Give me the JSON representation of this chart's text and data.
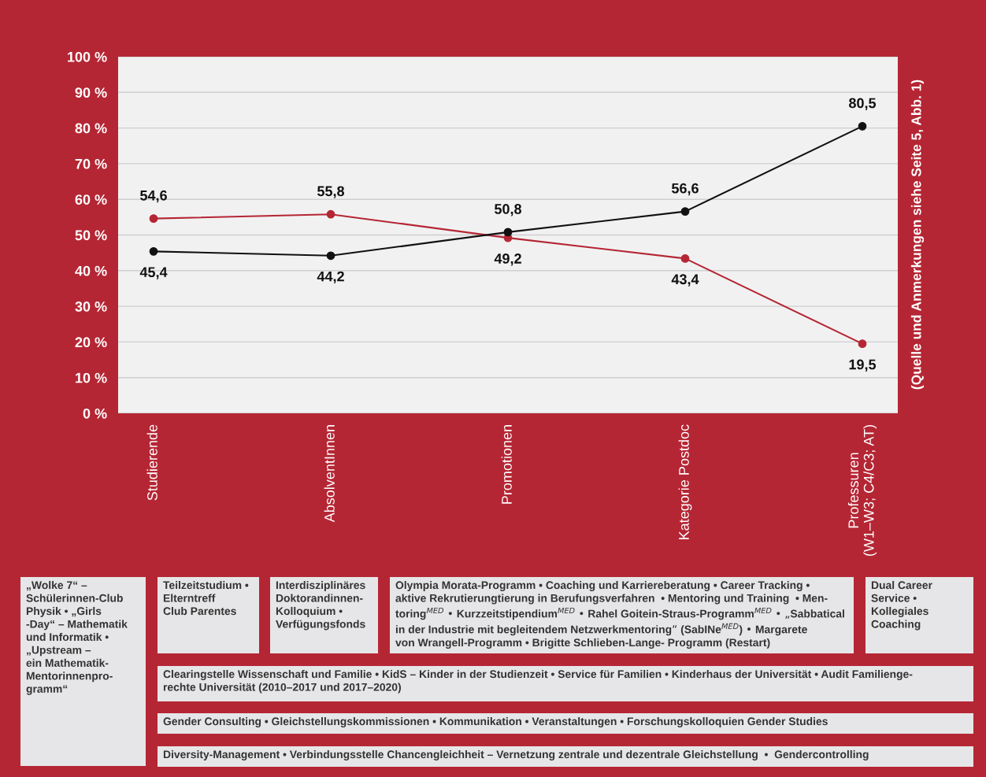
{
  "chart_data": {
    "type": "line",
    "categories": [
      "Studierende",
      "AbsolventInnen",
      "Promotionen",
      "Kategorie Postdoc",
      "Professuren\n(W1–W3; C4/C3; AT)"
    ],
    "series": [
      {
        "color": "#b52634",
        "values": [
          54.6,
          55.8,
          49.2,
          43.4,
          19.5
        ],
        "value_labels": [
          "54,6",
          "55,8",
          "49,2",
          "43,4",
          "19,5"
        ]
      },
      {
        "color": "#111111",
        "values": [
          45.4,
          44.2,
          50.8,
          56.6,
          80.5
        ],
        "value_labels": [
          "45,4",
          "44,2",
          "50,8",
          "56,6",
          "80,5"
        ]
      }
    ],
    "ylim": [
      0,
      100
    ],
    "yticks": [
      {
        "value": 0,
        "label": "0 %"
      },
      {
        "value": 10,
        "label": "10 %"
      },
      {
        "value": 20,
        "label": "20 %"
      },
      {
        "value": 30,
        "label": "30 %"
      },
      {
        "value": 40,
        "label": "40 %"
      },
      {
        "value": 50,
        "label": "50 %"
      },
      {
        "value": 60,
        "label": "60 %"
      },
      {
        "value": 70,
        "label": "70 %"
      },
      {
        "value": 80,
        "label": "80 %"
      },
      {
        "value": 90,
        "label": "90 %"
      },
      {
        "value": 100,
        "label": "100 %"
      }
    ],
    "grid": "y",
    "marker": "circle",
    "line_style": "solid",
    "legend": false,
    "annotations": [
      "(Quelle und Anmerkungen siehe Seite 5, Abb. 1)",
      "„Wolke 7“ –\nSchülerinnen-Club\nPhysik • „Girls\n-Day“ – Mathematik\nund Informatik •\n„Upstream –\nein Mathematik-\nMentorinnenpro-\ngramm“",
      "Teilzeitstudium •\nElterntreff\nClub Parentes",
      "Interdisziplinäres\nDoktorandinnen-\nKolloquium •\nVerfügungsfonds",
      "Olympia Morata-Programm • Coaching und Karriereberatung • Career Tracking •\naktive Rekrutierungtierung in Berufungsverfahren  • Mentoring und Training  • Men-\ntoring$^{MED}$ • Kurzzeitstipendium$^{MED}$ • Rahel Goitein-Straus-Programm$^{MED}$ • „Sabbatical\nin der Industrie mit begleitendem Netzwerkmentoring“ (SabINe$^{MED}$) • Margarete\nvon Wrangell-Programm • Brigitte Schlieben-Lange- Programm (Restart)",
      "Dual Career\nService •\nKollegiales\nCoaching",
      "Clearingstelle Wissenschaft und Familie • KidS – Kinder in der Studienzeit • Service für Familien • Kinderhaus der Universität • Audit Familienge-\nrechte Universität (2010–2017 und 2017–2020)",
      "Gender Consulting • Gleichstellungskommissionen • Kommunikation • Veranstaltungen • Forschungskolloquien Gender Studies",
      "Diversity-Management • Verbindungsstelle Chancengleichheit – Vernetzung zentrale und dezentrale Gleichstellung  •  Gendercontrolling"
    ]
  }
}
